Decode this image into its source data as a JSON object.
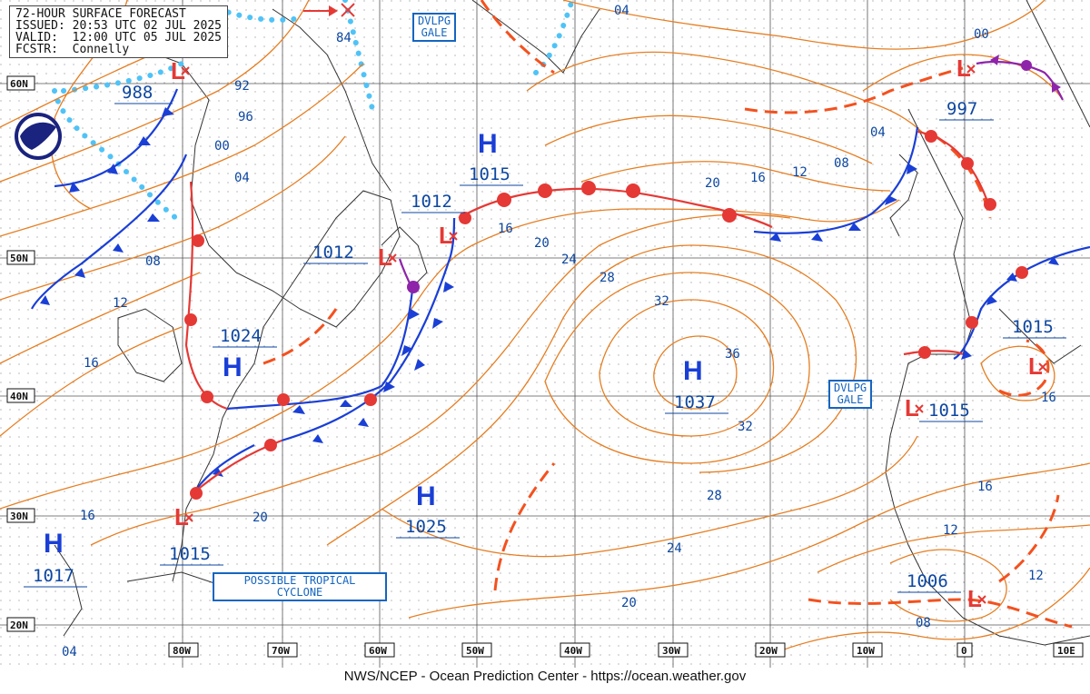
{
  "header": {
    "title": "72-HOUR SURFACE FORECAST",
    "issued": "ISSUED: 20:53 UTC 02 JUL 2025",
    "valid": "VALID:  12:00 UTC 05 JUL 2025",
    "forecaster": "FCSTR:  Connelly"
  },
  "footer": "NWS/NCEP - Ocean Prediction Center - https://ocean.weather.gov",
  "lat_labels": [
    "60N",
    "50N",
    "40N",
    "30N",
    "20N"
  ],
  "lon_labels": [
    "80W",
    "70W",
    "60W",
    "50W",
    "40W",
    "30W",
    "20W",
    "10W",
    "0",
    "10E"
  ],
  "isobar_labels": [
    "04",
    "84",
    "92",
    "96",
    "00",
    "04",
    "08",
    "12",
    "16",
    "16",
    "20",
    "24",
    "28",
    "32",
    "36",
    "32",
    "28",
    "24",
    "20",
    "20",
    "16",
    "20",
    "16",
    "12",
    "08",
    "04",
    "00",
    "04",
    "16",
    "12",
    "08",
    "16",
    "12",
    "16",
    "16"
  ],
  "pressure_values": [
    "988",
    "1024",
    "1012",
    "1012",
    "1015",
    "1037",
    "1025",
    "1017",
    "1015",
    "997",
    "1015",
    "1015",
    "1006"
  ],
  "high_symbol": "H",
  "low_symbol": "L",
  "warning_gale_1": [
    "DVLPG",
    "GALE"
  ],
  "warning_gale_2": [
    "DVLPG",
    "GALE"
  ],
  "tropical": [
    "POSSIBLE TROPICAL",
    "CYCLONE"
  ],
  "colors": {
    "isobar": "#e67e22",
    "cold_front": "#1a3fd6",
    "warm_front": "#e53935",
    "occluded": "#8e24aa",
    "trough": "#f4511e",
    "ice": "#4fc3f7",
    "land": "#333333"
  }
}
